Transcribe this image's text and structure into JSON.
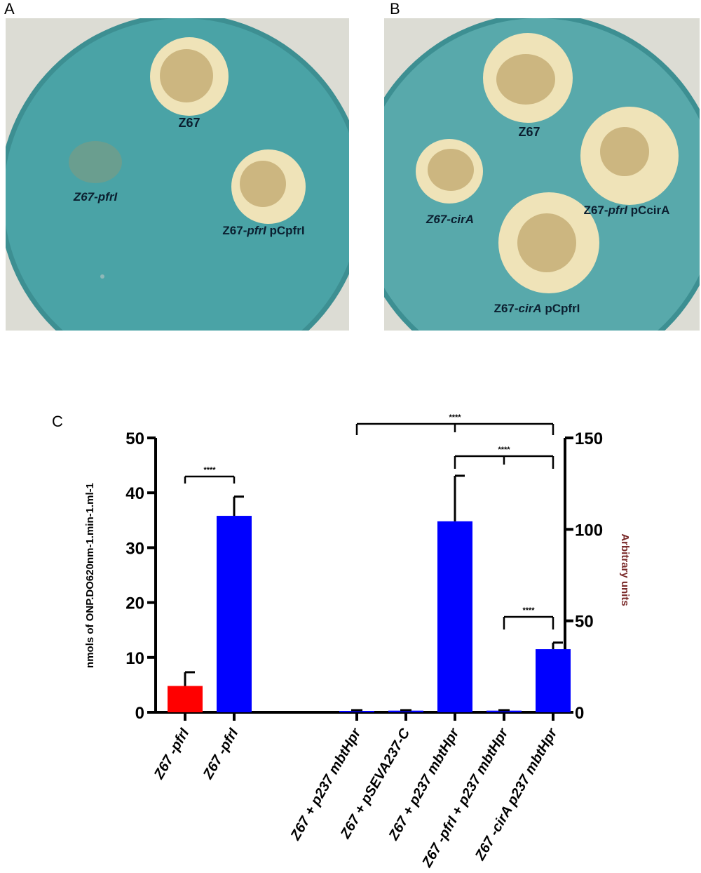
{
  "panels": {
    "a": {
      "letter": "A",
      "colonies": [
        {
          "plain": "Z67",
          "italic": "",
          "suffix": ""
        },
        {
          "plain": "Z67-",
          "italic": "pfrI",
          "suffix": ""
        },
        {
          "plain": "Z67-",
          "italic": "pfrI",
          "suffix": " pCpfrI"
        }
      ]
    },
    "b": {
      "letter": "B",
      "colonies": [
        {
          "plain": "Z67",
          "italic": "",
          "suffix": ""
        },
        {
          "plain": "Z67-",
          "italic": "cirA",
          "suffix": ""
        },
        {
          "plain": "Z67-",
          "italic": "pfrI",
          "suffix": " pCcirA"
        },
        {
          "plain": "Z67-",
          "italic": "cirA",
          "suffix": " pCpfrI"
        }
      ]
    },
    "c": {
      "letter": "C"
    }
  },
  "colors": {
    "plate_blue": "#4aa3a6",
    "colony_halo": "#efe3b8",
    "colony_core": "#ccb680",
    "bar_red": "#ff0000",
    "bar_blue": "#0000ff",
    "right_axis_label": "#7a2a2a"
  },
  "chart_data": {
    "type": "bar",
    "categories": [
      {
        "pre": "Z67 -",
        "italic": "pfrI",
        "post": ""
      },
      {
        "pre": "Z67 -",
        "italic": "pfrI",
        "post": ""
      },
      {
        "pre": "Z67 + p237 ",
        "italic": "mbtH",
        "post": "pr"
      },
      {
        "pre": "Z67 + pSEVA237-C",
        "italic": "",
        "post": ""
      },
      {
        "pre": "Z67 + p237 ",
        "italic": "mbtH",
        "post": "pr"
      },
      {
        "pre": "Z67 -",
        "italic": "pfrI",
        "post": " + p237 mbtHpr"
      },
      {
        "pre": "Z67 -",
        "italic": "cirA",
        "post": " p237 mbtHpr"
      }
    ],
    "x_positions": [
      1,
      2,
      4.5,
      5.5,
      6.5,
      7.5,
      8.5
    ],
    "values": [
      4.8,
      35.8,
      0.2,
      0.3,
      34.8,
      0.3,
      11.5
    ],
    "errors": [
      2.5,
      3.5,
      0,
      0,
      8.3,
      0,
      1.2
    ],
    "bar_colors": [
      "#ff0000",
      "#0000ff",
      "#0000ff",
      "#0000ff",
      "#0000ff",
      "#0000ff",
      "#0000ff"
    ],
    "ylabel_left": "nmols of ONP.DO620nm-1.min-1.ml-1",
    "ylabel_right": "Arbitrary units",
    "ylim_left": [
      0,
      50
    ],
    "ylim_right": [
      0,
      150
    ],
    "yticks_left": [
      "0",
      "10",
      "20",
      "30",
      "40",
      "50"
    ],
    "yticks_right": [
      "0",
      "50",
      "100",
      "150"
    ],
    "significance": [
      {
        "from": 1,
        "to": 2,
        "label": "****"
      },
      {
        "from": 4.5,
        "to": 8.5,
        "label": "****"
      },
      {
        "from": 6.5,
        "to": 8.5,
        "label": "****"
      },
      {
        "from": 7.5,
        "to": 8.5,
        "label": "****"
      }
    ]
  }
}
